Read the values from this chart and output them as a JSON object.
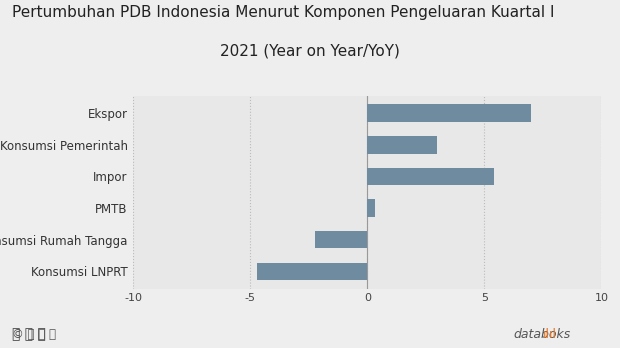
{
  "title_line1": "Pertumbuhan PDB Indonesia Menurut Komponen Pengeluaran Kuartal I",
  "title_line2": "2021 (Year on Year/YoY)",
  "categories": [
    "Konsumsi LNPRT",
    "Konsumsi Rumah Tangga",
    "PMTB",
    "Impor",
    "Konsumsi Pemerintah",
    "Ekspor"
  ],
  "values": [
    -4.72,
    -2.23,
    0.32,
    5.42,
    2.96,
    7.01
  ],
  "bar_color": "#6e8ba0",
  "xlim": [
    -10,
    10
  ],
  "xticks": [
    -10,
    -5,
    0,
    5,
    10
  ],
  "background_color": "#eeeeee",
  "plot_bg_color": "#e8e8e8",
  "title_fontsize": 11,
  "label_fontsize": 8.5,
  "tick_fontsize": 8,
  "databoks_color_icon": "#e87722",
  "databoks_color_text": "#555555"
}
